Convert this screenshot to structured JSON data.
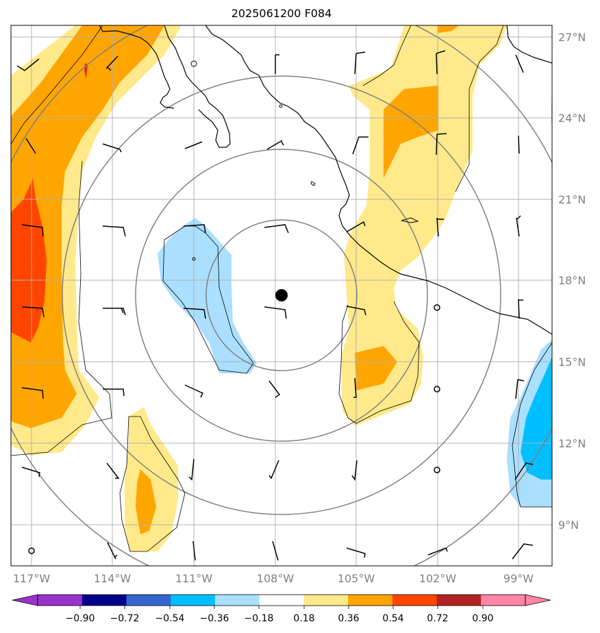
{
  "title": "2025061200 F084",
  "latitude_labels": [
    "27°N",
    "24°N",
    "21°N",
    "18°N",
    "15°N",
    "12°N",
    "9°N"
  ],
  "longitude_labels": [
    "117°W",
    "114°W",
    "111°W",
    "108°W",
    "105°W",
    "102°W",
    "99°W"
  ],
  "colorbar": {
    "ticks": [
      "−0.90",
      "−0.72",
      "−0.54",
      "−0.36",
      "−0.18",
      "0.18",
      "0.36",
      "0.54",
      "0.72",
      "0.90"
    ],
    "colors": {
      "under": "#9933cc",
      "bins": [
        "#9933cc",
        "#00008b",
        "#3366cc",
        "#00bfff",
        "#aadfff",
        "#ffffff",
        "#ffe98a",
        "#ffa500",
        "#ff4500",
        "#b22222",
        "#ff85a6"
      ],
      "over": "#ff85a6"
    }
  },
  "colors": {
    "light_yellow": "#ffe98a",
    "orange": "#ffa500",
    "red_orange": "#ff4500",
    "red": "#e03000",
    "light_blue": "#aadfff",
    "blue": "#00bfff",
    "grid": "#b0b0b0",
    "range_rings": "#808080",
    "coast": "#000000",
    "center_dot": "#000000"
  }
}
